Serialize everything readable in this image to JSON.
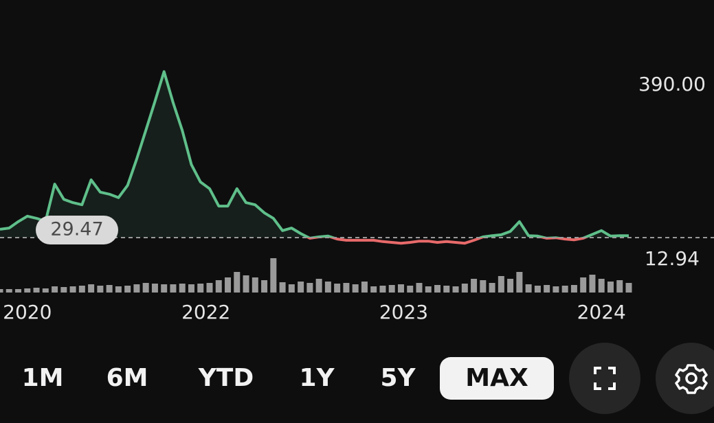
{
  "chart_data": {
    "type": "line",
    "series": [
      {
        "values": [
          49,
          52,
          67,
          80,
          75,
          68,
          156,
          120,
          112,
          107,
          166,
          137,
          132,
          124,
          153,
          215,
          283,
          351,
          422,
          348,
          283,
          202,
          161,
          145,
          104,
          104,
          145,
          112,
          107,
          88,
          75,
          46,
          52,
          39,
          28,
          31,
          33,
          26,
          23,
          23,
          23,
          23,
          20,
          18,
          16,
          18,
          21,
          21,
          18,
          20,
          18,
          16,
          23,
          31,
          34,
          36,
          44,
          67,
          34,
          33,
          28,
          29,
          26,
          24,
          28,
          37,
          46,
          33,
          34,
          34
        ]
      }
    ],
    "color_above": "#5fbf8a",
    "color_below": "#e86a6a",
    "xlim": [
      0,
      69
    ],
    "xticks": [
      {
        "value": 3,
        "label": "2020"
      },
      {
        "value": 22.6,
        "label": "2022"
      },
      {
        "value": 44.3,
        "label": "2023"
      },
      {
        "value": 66,
        "label": "2024"
      }
    ],
    "ylim": [
      0,
      440
    ],
    "yticks": [
      {
        "value": 390,
        "label": "390.00"
      },
      {
        "value": 12.94,
        "label": "12.94"
      }
    ],
    "reference": {
      "value": 29.47,
      "label": "29.47"
    },
    "volume": {
      "values": [
        5,
        5,
        5,
        6,
        7,
        6,
        9,
        8,
        9,
        10,
        12,
        10,
        11,
        9,
        10,
        12,
        14,
        13,
        12,
        12,
        13,
        12,
        13,
        14,
        18,
        22,
        30,
        25,
        22,
        18,
        50,
        15,
        12,
        16,
        14,
        20,
        16,
        13,
        14,
        12,
        16,
        9,
        10,
        11,
        12,
        10,
        14,
        9,
        11,
        10,
        9,
        13,
        20,
        18,
        14,
        24,
        20,
        30,
        12,
        10,
        11,
        9,
        10,
        11,
        22,
        26,
        20,
        16,
        18,
        14
      ],
      "color": "#9a9a9a",
      "ylim": [
        0,
        60
      ]
    }
  },
  "controls": {
    "ranges": [
      "1M",
      "6M",
      "YTD",
      "1Y",
      "5Y",
      "MAX"
    ],
    "selected_index": 5
  }
}
